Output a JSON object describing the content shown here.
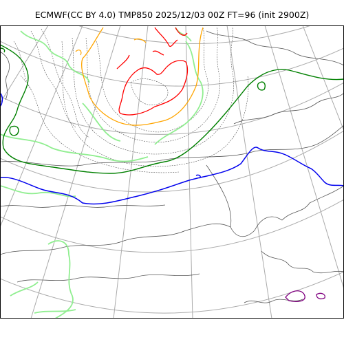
{
  "header": {
    "title": "ECMWF(CC BY 4.0) TMP850 2025/12/03 00Z FT=96 (init 2900Z)"
  },
  "map": {
    "variable": "TMP850",
    "colors": {
      "graticule": "#aaaaaa",
      "coastline": "#555555",
      "isotherm_minor": "#555555",
      "isotherm_green": "#008000",
      "isotherm_blue": "#0000ee",
      "isotherm_lightgreen": "#90ee90",
      "isotherm_orange": "#ffa500",
      "isotherm_red": "#ff0000",
      "isotherm_purple": "#800080",
      "frame": "#000000"
    }
  }
}
